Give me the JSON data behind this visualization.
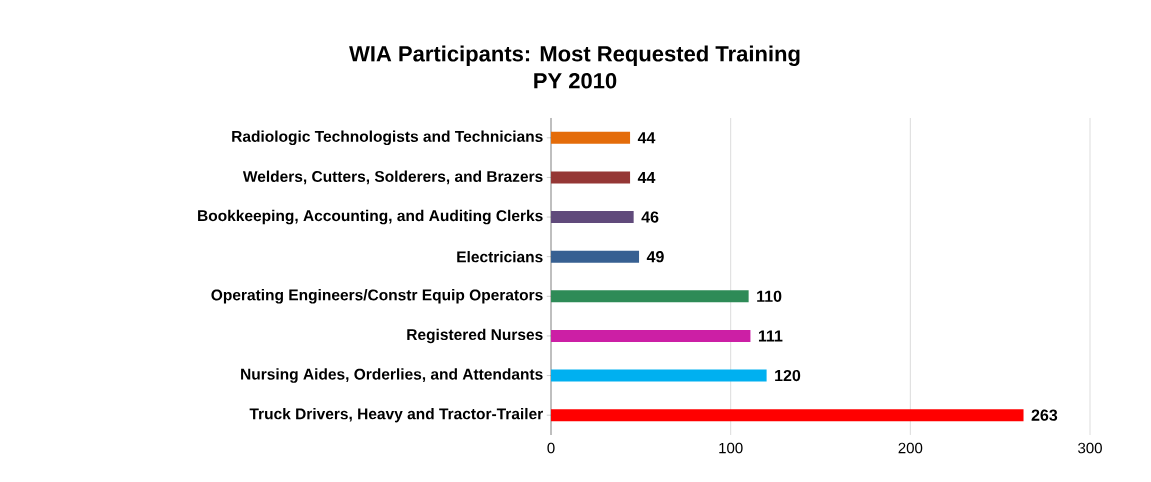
{
  "chart_data": {
    "type": "bar",
    "orientation": "horizontal",
    "title": "WIA Participants:  Most Requested Training\nPY 2010",
    "categories": [
      "Radiologic Technologists and Technicians",
      "Welders, Cutters, Solderers, and Brazers",
      "Bookkeeping, Accounting, and Auditing Clerks",
      "Electricians",
      "Operating Engineers/Constr Equip Operators",
      "Registered Nurses",
      "Nursing Aides, Orderlies, and Attendants",
      "Truck Drivers, Heavy and Tractor-Trailer"
    ],
    "values": [
      44,
      44,
      46,
      49,
      110,
      111,
      120,
      263
    ],
    "colors": [
      "#e46c0a",
      "#953735",
      "#604a7b",
      "#376092",
      "#2e8b57",
      "#cc1fa5",
      "#00b0f0",
      "#ff0000"
    ],
    "xlim": [
      0,
      300
    ],
    "xticks": [
      0,
      100,
      200,
      300
    ],
    "grid": "x",
    "data_labels": true
  }
}
